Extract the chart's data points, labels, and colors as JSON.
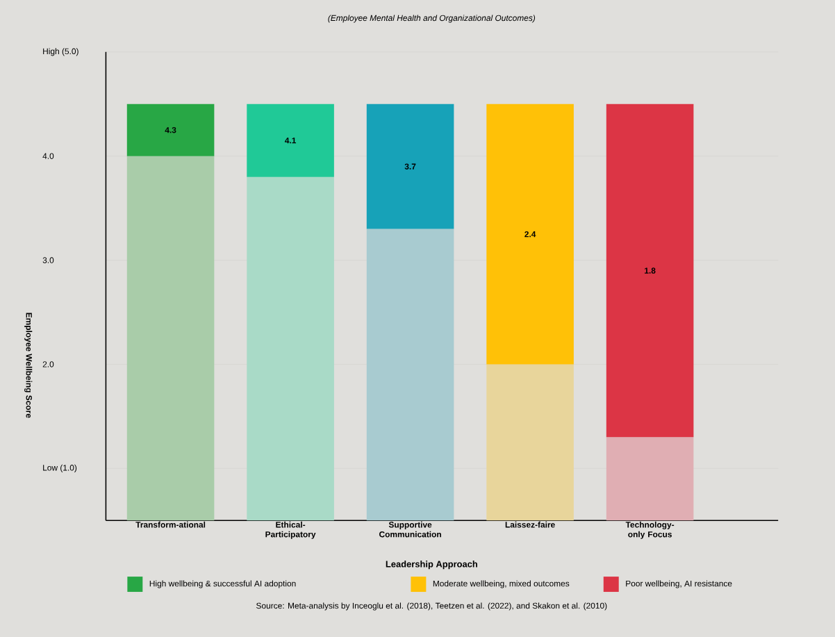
{
  "chart_data": {
    "type": "bar",
    "stacked": true,
    "subtitle": "(Employee Mental Health and Organizational Outcomes)",
    "xlabel": "Leadership Approach",
    "ylabel": "Employee Wellbeing Score",
    "categories": [
      "Transform-ational",
      "Ethical-Participatory",
      "Supportive Communication",
      "Laissez-faire",
      "Technology-only Focus"
    ],
    "series": [
      {
        "colors": [
          "#a9cca9",
          "#a9dac7",
          "#a8cbd0",
          "#e8d59b",
          "#e0aeb3"
        ],
        "values": [
          4.0,
          3.8,
          3.3,
          2.0,
          1.3
        ]
      },
      {
        "name": "High wellbeing & successful AI adoption",
        "color": "#28a745",
        "colors": [
          "#28a745",
          "#20c997",
          "#17a2b8",
          null,
          null
        ],
        "values": [
          0.5,
          0.7,
          1.2,
          null,
          null
        ]
      },
      {
        "name": "Moderate wellbeing, mixed outcomes",
        "color": "#ffc107",
        "values": [
          null,
          null,
          null,
          2.5,
          null
        ]
      },
      {
        "name": "Poor wellbeing, AI resistance",
        "color": "#dc3545",
        "values": [
          null,
          null,
          null,
          null,
          3.2
        ]
      }
    ],
    "ylim": [
      0.5,
      5.0
    ],
    "yticks": [
      {
        "value": 1,
        "label": "Low (1.0)"
      },
      {
        "value": 2,
        "label": "2.0"
      },
      {
        "value": 3,
        "label": "3.0"
      },
      {
        "value": 4,
        "label": "4.0"
      },
      {
        "value": 5.0,
        "label": "High (5.0)"
      }
    ],
    "grid": "y",
    "legend": "bottom",
    "annotations": [
      "4.3",
      "4.1",
      "3.7",
      "2.4",
      "1.8",
      "Source: Meta-analysis by Inceoglu et al. (2018), Teetzen et al. (2022), and Skakon et al. (2010)"
    ]
  }
}
